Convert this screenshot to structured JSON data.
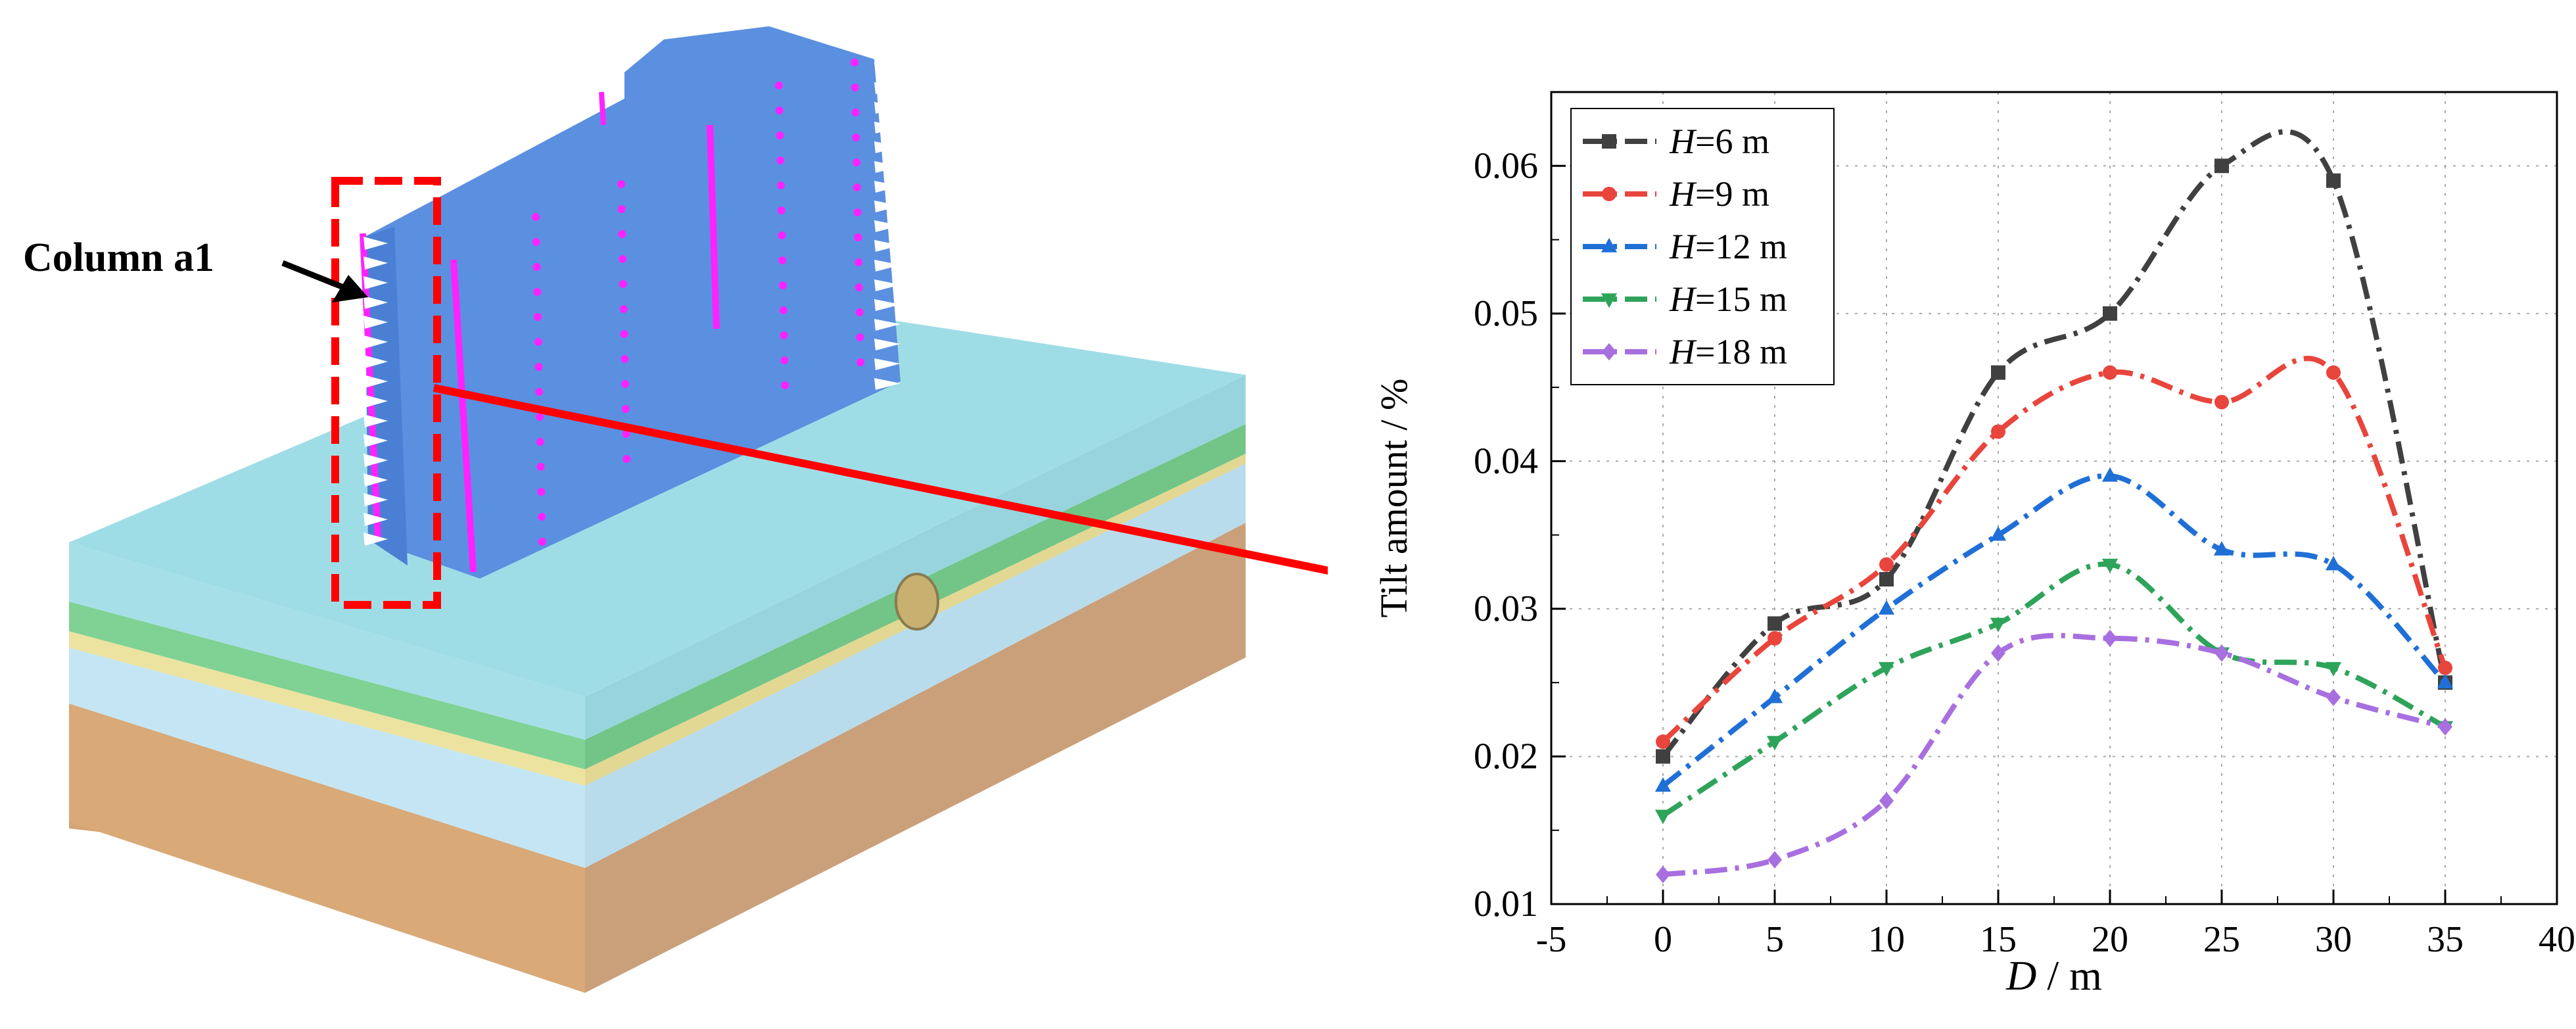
{
  "figure": {
    "annotation_label": "Column a1"
  },
  "colors": {
    "building": "#5b8fe0",
    "building_dark": "#3f6fc6",
    "top_soil": "#9fdde6",
    "green_layer": "#78d08a",
    "yellow_layer": "#e8e09a",
    "blue_layer": "#bfe3f2",
    "deep_soil": "#dbaa78",
    "magenta": "#ff22ff",
    "arrow_red": "#ff0000",
    "highlight_box": "#ff0000"
  },
  "chart_data": {
    "type": "line",
    "title": "",
    "xlabel_italic": "D",
    "xlabel_rest": " / m",
    "ylabel": "Tilt amount / %",
    "xlim": [
      -5,
      40
    ],
    "ylim": [
      0.01,
      0.065
    ],
    "xticks": [
      -5,
      0,
      5,
      10,
      15,
      20,
      25,
      30,
      35,
      40
    ],
    "yticks": [
      0.01,
      0.02,
      0.03,
      0.04,
      0.05,
      0.06
    ],
    "ytick_labels": [
      "0.01",
      "0.02",
      "0.03",
      "0.04",
      "0.05",
      "0.06"
    ],
    "grid": true,
    "legend_position": "top-left",
    "x": [
      0,
      5,
      10,
      15,
      20,
      25,
      30,
      35
    ],
    "series": [
      {
        "name_italic": "H",
        "name_rest": "=6 m",
        "marker": "square",
        "color": "#404040",
        "values": [
          0.02,
          0.029,
          0.032,
          0.046,
          0.05,
          0.06,
          0.059,
          0.025
        ]
      },
      {
        "name_italic": "H",
        "name_rest": "=9 m",
        "marker": "circle",
        "color": "#e8453c",
        "values": [
          0.021,
          0.028,
          0.033,
          0.042,
          0.046,
          0.044,
          0.046,
          0.026
        ]
      },
      {
        "name_italic": "H",
        "name_rest": "=12 m",
        "marker": "triangle-up",
        "color": "#1f6fd6",
        "values": [
          0.018,
          0.024,
          0.03,
          0.035,
          0.039,
          0.034,
          0.033,
          0.025
        ]
      },
      {
        "name_italic": "H",
        "name_rest": "=15 m",
        "marker": "triangle-down",
        "color": "#2ea35a",
        "values": [
          0.016,
          0.021,
          0.026,
          0.029,
          0.033,
          0.027,
          0.026,
          0.022
        ]
      },
      {
        "name_italic": "H",
        "name_rest": "=18 m",
        "marker": "diamond",
        "color": "#a86fe0",
        "values": [
          0.012,
          0.013,
          0.017,
          0.027,
          0.028,
          0.027,
          0.024,
          0.022
        ]
      }
    ]
  }
}
